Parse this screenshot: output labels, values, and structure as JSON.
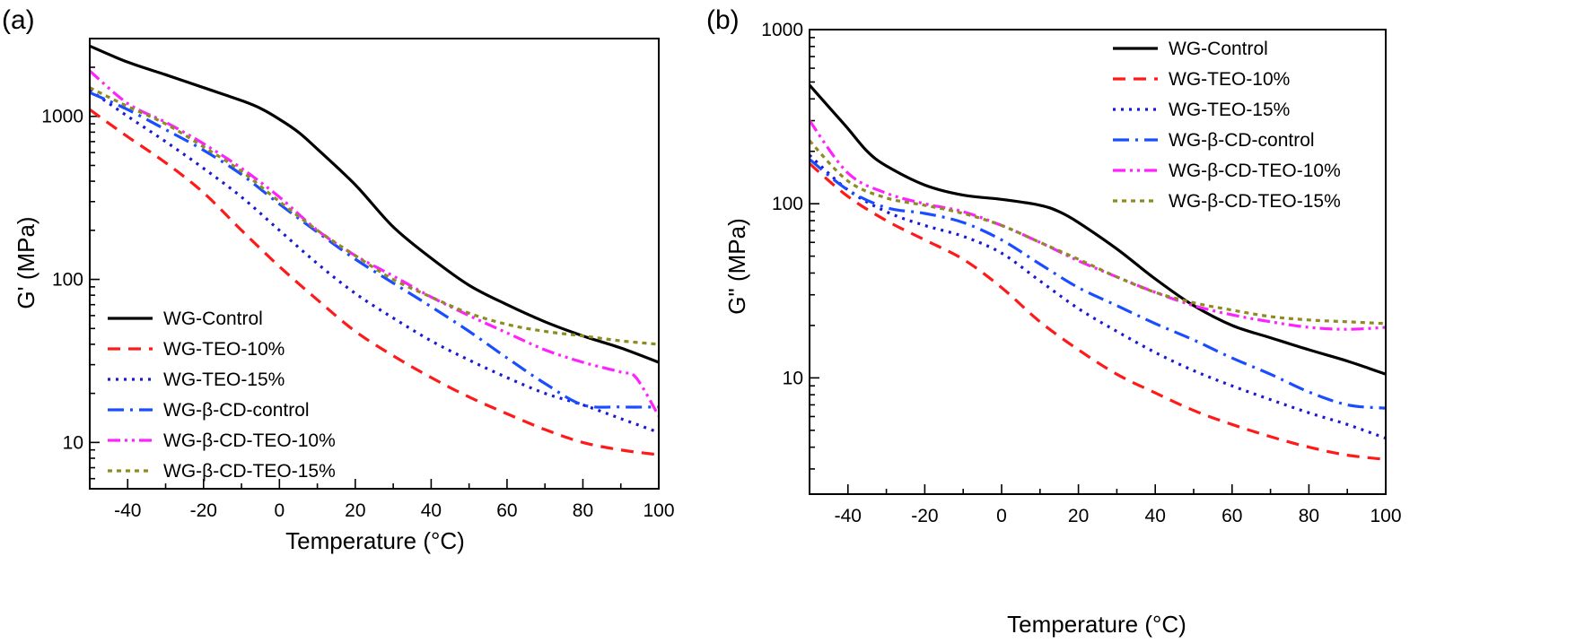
{
  "chart_data": [
    {
      "panel": "(a)",
      "type": "line",
      "xlabel": "Temperature (°C)",
      "ylabel": "G' (MPa)",
      "xlim": [
        -50,
        100
      ],
      "ylim": [
        5.2,
        3000
      ],
      "yscale": "log",
      "legend_position": "bottom-left",
      "x_ticks": [
        -40,
        -20,
        0,
        20,
        40,
        60,
        80,
        100
      ],
      "y_ticks": [
        10,
        100,
        1000
      ],
      "x_tick_labels": [
        "-40",
        "-20",
        "0",
        "20",
        "40",
        "60",
        "80",
        "100"
      ],
      "y_tick_labels": [
        "10",
        "100",
        "1000"
      ],
      "series": [
        {
          "name": "WG-Control",
          "color": "#000000",
          "dash": "solid",
          "x": [
            -50,
            -40,
            -30,
            -20,
            -10,
            -5,
            0,
            5,
            10,
            20,
            30,
            40,
            50,
            60,
            70,
            80,
            90,
            100
          ],
          "y": [
            2700,
            2150,
            1800,
            1500,
            1250,
            1120,
            960,
            800,
            630,
            380,
            210,
            135,
            92,
            70,
            55,
            45,
            38,
            31
          ]
        },
        {
          "name": "WG-TEO-10%",
          "color": "#ff1a1a",
          "dash": "14 9",
          "x": [
            -50,
            -40,
            -30,
            -20,
            -10,
            0,
            10,
            20,
            30,
            40,
            50,
            60,
            70,
            80,
            90,
            100
          ],
          "y": [
            1100,
            750,
            520,
            340,
            200,
            120,
            75,
            48,
            34,
            25,
            19,
            15,
            12,
            10,
            9,
            8.4
          ]
        },
        {
          "name": "WG-TEO-15%",
          "color": "#1a1ad6",
          "dash": "3 6",
          "x": [
            -50,
            -40,
            -30,
            -20,
            -10,
            0,
            10,
            20,
            30,
            40,
            50,
            60,
            70,
            80,
            90,
            100
          ],
          "y": [
            1450,
            1000,
            700,
            480,
            320,
            200,
            125,
            82,
            58,
            42,
            32,
            25,
            20,
            17,
            14,
            11.5
          ]
        },
        {
          "name": "WG-β-CD-control",
          "color": "#1a4dff",
          "dash": "18 7 3 7",
          "x": [
            -50,
            -40,
            -30,
            -20,
            -10,
            0,
            10,
            20,
            30,
            40,
            50,
            60,
            70,
            80,
            90,
            100
          ],
          "y": [
            1400,
            1100,
            830,
            620,
            440,
            290,
            195,
            133,
            95,
            68,
            48,
            33,
            23,
            17,
            16.5,
            16.5
          ]
        },
        {
          "name": "WG-β-CD-TEO-10%",
          "color": "#ff22ff",
          "dash": "14 5 3 5 3 5",
          "x": [
            -50,
            -40,
            -30,
            -20,
            -10,
            0,
            10,
            20,
            30,
            40,
            50,
            60,
            70,
            80,
            90,
            94,
            100
          ],
          "y": [
            1900,
            1200,
            920,
            680,
            480,
            320,
            200,
            140,
            105,
            78,
            60,
            47,
            37,
            31,
            27,
            25,
            14.5
          ]
        },
        {
          "name": "WG-β-CD-TEO-15%",
          "color": "#8c8c21",
          "dash": "5 5",
          "x": [
            -50,
            -40,
            -30,
            -20,
            -10,
            0,
            10,
            20,
            30,
            40,
            50,
            60,
            70,
            80,
            90,
            100
          ],
          "y": [
            1500,
            1150,
            900,
            650,
            460,
            300,
            200,
            140,
            100,
            78,
            62,
            53,
            48,
            45,
            42,
            40
          ]
        }
      ]
    },
    {
      "panel": "(b)",
      "type": "line",
      "xlabel": "Temperature (°C)",
      "ylabel": "G\" (MPa)",
      "xlim": [
        -50,
        100
      ],
      "ylim": [
        2.15,
        1000
      ],
      "yscale": "log",
      "legend_position": "top-right",
      "x_ticks": [
        -40,
        -20,
        0,
        20,
        40,
        60,
        80,
        100
      ],
      "y_ticks": [
        10,
        100,
        1000
      ],
      "x_tick_labels": [
        "-40",
        "-20",
        "0",
        "20",
        "40",
        "60",
        "80",
        "100"
      ],
      "y_tick_labels": [
        "10",
        "100",
        "1000"
      ],
      "series": [
        {
          "name": "WG-Control",
          "color": "#000000",
          "dash": "solid",
          "x": [
            -50,
            -45,
            -40,
            -35,
            -30,
            -20,
            -10,
            0,
            10,
            15,
            20,
            30,
            40,
            50,
            60,
            70,
            80,
            90,
            100
          ],
          "y": [
            480,
            360,
            270,
            200,
            165,
            128,
            112,
            106,
            98,
            90,
            78,
            55,
            37,
            26,
            20,
            17,
            14.5,
            12.5,
            10.5
          ]
        },
        {
          "name": "WG-TEO-10%",
          "color": "#ff1a1a",
          "dash": "14 9",
          "x": [
            -50,
            -40,
            -30,
            -20,
            -10,
            0,
            10,
            20,
            30,
            40,
            50,
            60,
            70,
            80,
            90,
            100
          ],
          "y": [
            170,
            110,
            80,
            62,
            48,
            33,
            21,
            14.5,
            10.5,
            8.2,
            6.5,
            5.4,
            4.6,
            4.0,
            3.6,
            3.4
          ]
        },
        {
          "name": "WG-TEO-15%",
          "color": "#1a1ad6",
          "dash": "3 6",
          "x": [
            -50,
            -40,
            -30,
            -20,
            -10,
            0,
            10,
            20,
            30,
            40,
            50,
            60,
            70,
            80,
            90,
            100
          ],
          "y": [
            190,
            120,
            90,
            75,
            65,
            52,
            36,
            25,
            18.5,
            14,
            11,
            9,
            7.5,
            6.3,
            5.4,
            4.5
          ]
        },
        {
          "name": "WG-β-CD-control",
          "color": "#1a4dff",
          "dash": "18 7 3 7",
          "x": [
            -50,
            -40,
            -30,
            -20,
            -10,
            0,
            10,
            20,
            30,
            40,
            50,
            60,
            70,
            80,
            90,
            100
          ],
          "y": [
            180,
            120,
            95,
            88,
            78,
            62,
            45,
            33,
            26,
            20.5,
            16.5,
            13,
            10.5,
            8.3,
            7,
            6.7
          ]
        },
        {
          "name": "WG-β-CD-TEO-10%",
          "color": "#ff22ff",
          "dash": "14 5 3 5 3 5",
          "x": [
            -50,
            -40,
            -30,
            -20,
            -10,
            0,
            10,
            20,
            30,
            40,
            50,
            60,
            70,
            80,
            90,
            100
          ],
          "y": [
            300,
            150,
            115,
            100,
            90,
            75,
            60,
            47,
            38,
            31,
            26,
            23,
            21,
            19.5,
            19,
            19.5
          ]
        },
        {
          "name": "WG-β-CD-TEO-15%",
          "color": "#8c8c21",
          "dash": "5 5",
          "x": [
            -50,
            -40,
            -30,
            -20,
            -10,
            0,
            10,
            20,
            30,
            40,
            50,
            60,
            70,
            80,
            90,
            100
          ],
          "y": [
            230,
            135,
            108,
            98,
            88,
            75,
            60,
            48,
            38,
            31,
            27,
            24.5,
            22.5,
            21.5,
            21,
            20.5
          ]
        }
      ]
    }
  ]
}
